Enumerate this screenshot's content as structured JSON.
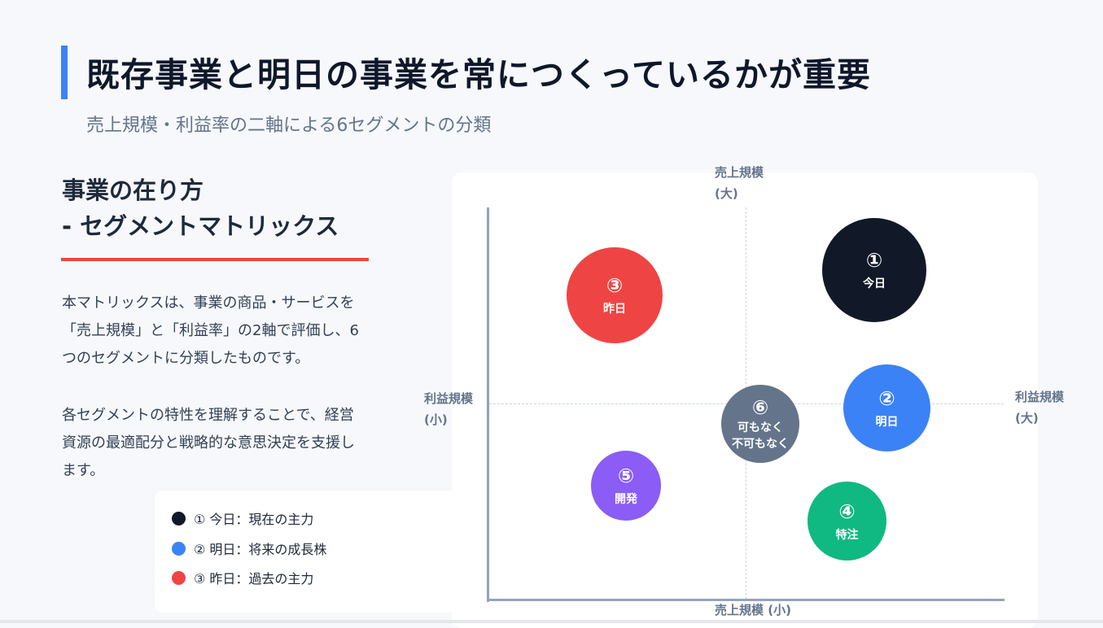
{
  "header": {
    "title": "既存事業と明日の事業を常につくっているかが重要",
    "subtitle": "売上規模・利益率の二軸による6セグメントの分類"
  },
  "section": {
    "title_line1": "事業の在り方",
    "title_line2": "- セグメントマトリックス",
    "paragraph1": "本マトリックスは、事業の商品・サービスを「売上規模」と「利益率」の2軸で評価し、6つのセグメントに分類したものです。",
    "paragraph2": "各セグメントの特性を理解することで、経営資源の最適配分と戦略的な意思決定を支援します。"
  },
  "legend": [
    {
      "label": "① 今日：現在の主力",
      "color": "#111827"
    },
    {
      "label": "② 明日：将来の成長株",
      "color": "#3b82f6"
    },
    {
      "label": "③ 昨日：過去の主力",
      "color": "#ef4444"
    }
  ],
  "axes": {
    "top_line1": "売上規模",
    "top_line2": "(大)",
    "bottom": "売上規模 (小)",
    "left_line1": "利益規模",
    "left_line2": "(小)",
    "right_line1": "利益規模",
    "right_line2": "(大)"
  },
  "segments": [
    {
      "num": "①",
      "label": "今日",
      "color": "#111827"
    },
    {
      "num": "②",
      "label": "明日",
      "color": "#3b82f6"
    },
    {
      "num": "③",
      "label": "昨日",
      "color": "#ef4444"
    },
    {
      "num": "④",
      "label": "特注",
      "color": "#10b981"
    },
    {
      "num": "⑤",
      "label": "開発",
      "color": "#8b5cf6"
    },
    {
      "num": "⑥",
      "label": "可もなく",
      "label2": "不可もなく",
      "color": "#64748b"
    }
  ]
}
